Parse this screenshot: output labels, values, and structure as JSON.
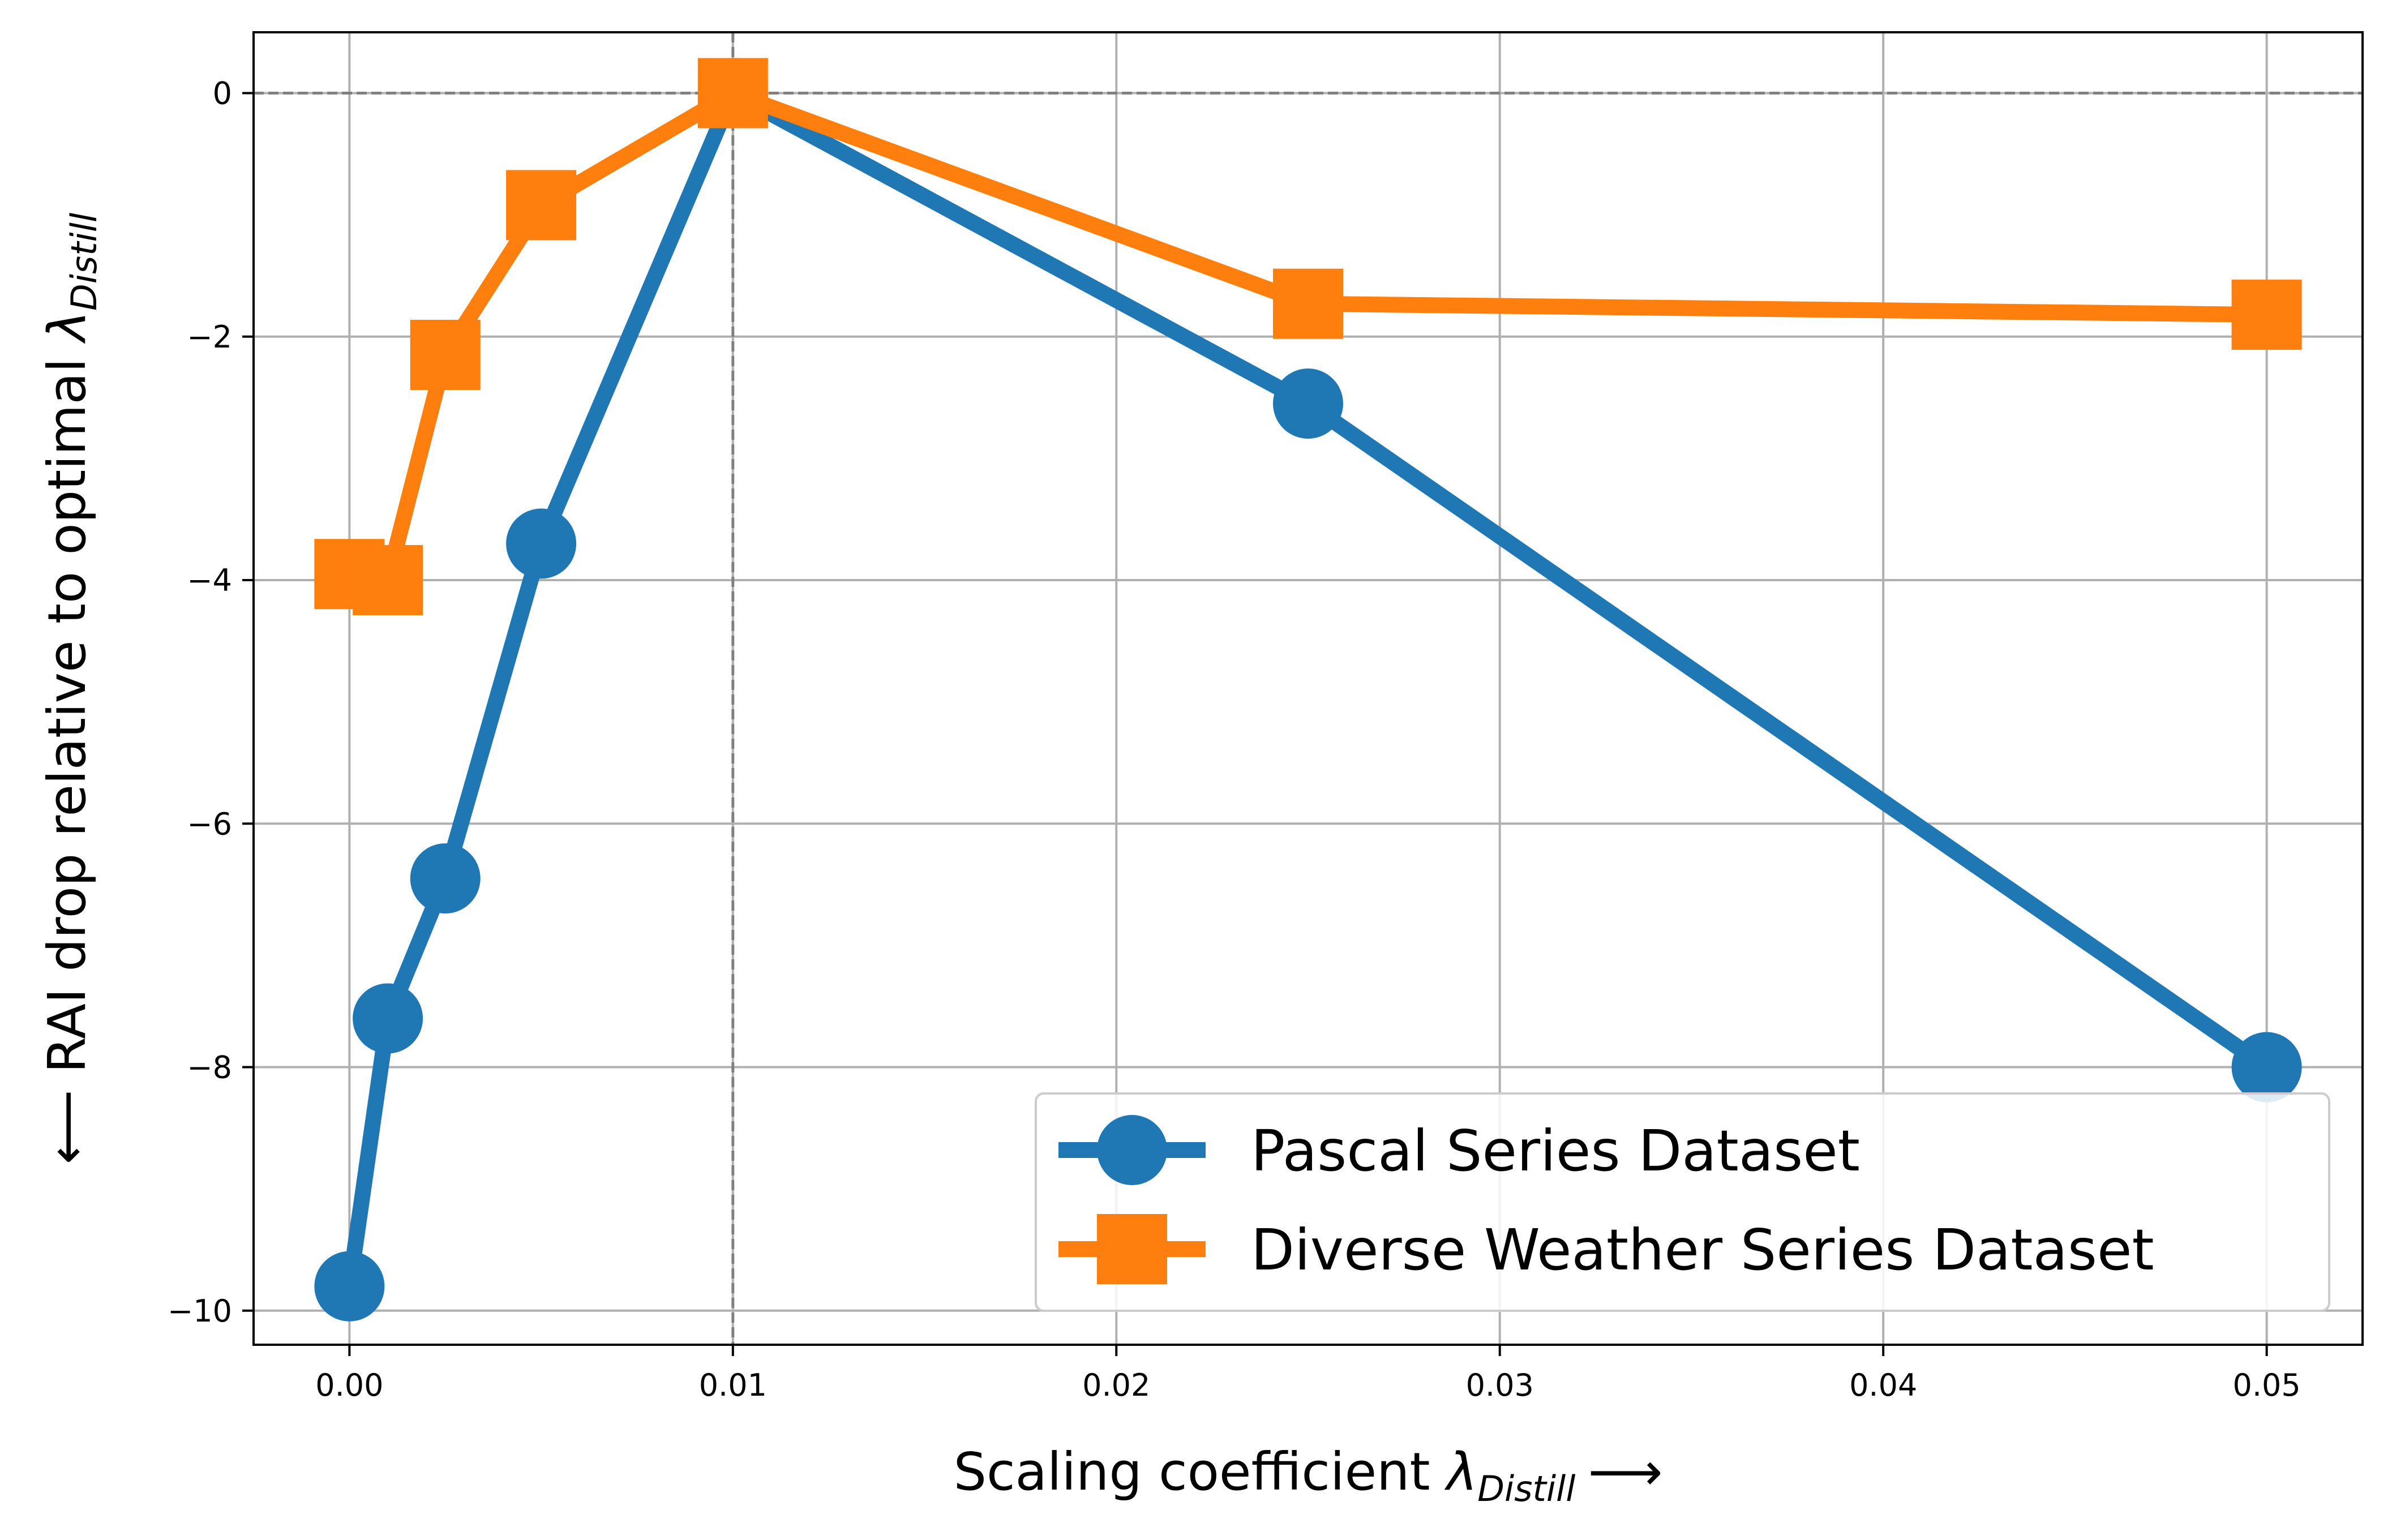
{
  "chart_data": {
    "type": "line",
    "xlabel": {
      "main": "Scaling coefficient ",
      "symbol": "λ",
      "sub": "Distill",
      "arrow": "⟶"
    },
    "ylabel": {
      "arrow": "⟵",
      "main": " RAI drop relative to optimal ",
      "symbol": "λ",
      "sub": "Distill"
    },
    "xlim": [
      -0.0025,
      0.0525
    ],
    "ylim": [
      -10.28,
      0.5
    ],
    "xticks": [
      0.0,
      0.01,
      0.02,
      0.03,
      0.04,
      0.05
    ],
    "xtick_labels": [
      "0.00",
      "0.01",
      "0.02",
      "0.03",
      "0.04",
      "0.05"
    ],
    "yticks": [
      0,
      -2,
      -4,
      -6,
      -8,
      -10
    ],
    "ytick_labels": [
      "0",
      "−2",
      "−4",
      "−6",
      "−8",
      "−10"
    ],
    "grid": true,
    "reference_lines": {
      "x": 0.01,
      "y": 0
    },
    "legend_position": "lower right",
    "series": [
      {
        "name": "Pascal Series Dataset",
        "color": "#1f77b4",
        "marker": "circle",
        "x": [
          0.0,
          0.001,
          0.0025,
          0.005,
          0.01,
          0.025,
          0.05
        ],
        "y": [
          -9.8,
          -7.6,
          -6.45,
          -3.7,
          0.0,
          -2.55,
          -8.0
        ]
      },
      {
        "name": "Diverse Weather Series Dataset",
        "color": "#ff7f0e",
        "marker": "square",
        "x": [
          0.0,
          0.001,
          0.0025,
          0.005,
          0.01,
          0.025,
          0.05
        ],
        "y": [
          -3.95,
          -4.0,
          -2.15,
          -0.92,
          0.0,
          -1.73,
          -1.82
        ]
      }
    ]
  }
}
